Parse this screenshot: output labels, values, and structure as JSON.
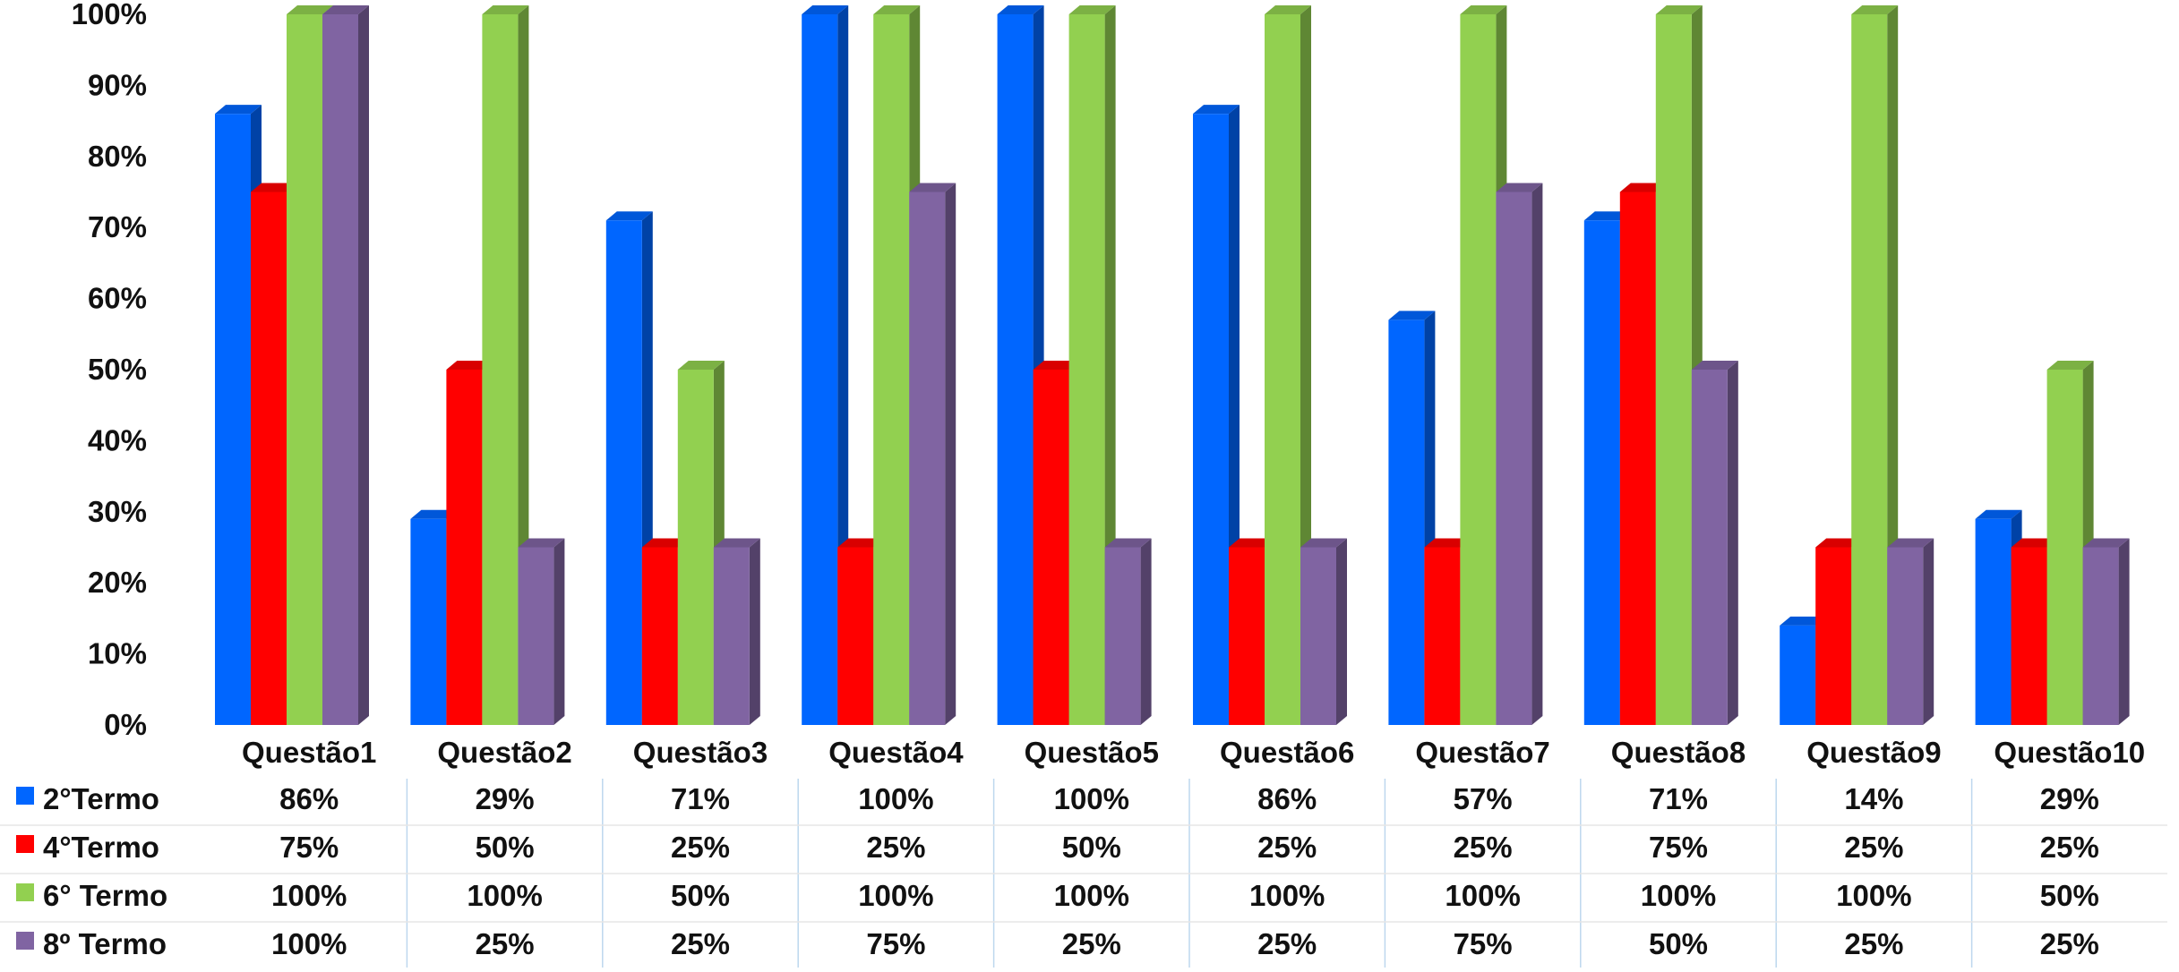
{
  "chart_data": {
    "type": "bar",
    "style": "3d-clustered-column-with-data-table",
    "categories": [
      "Questão1",
      "Questão2",
      "Questão3",
      "Questão4",
      "Questão5",
      "Questão6",
      "Questão7",
      "Questão8",
      "Questão9",
      "Questão10"
    ],
    "series": [
      {
        "name": "2°Termo",
        "color": "#0066FF",
        "values": [
          86,
          29,
          71,
          100,
          100,
          86,
          57,
          71,
          14,
          29
        ],
        "labels": [
          "86%",
          "29%",
          "71%",
          "100%",
          "100%",
          "86%",
          "57%",
          "71%",
          "14%",
          "29%"
        ]
      },
      {
        "name": "4°Termo",
        "color": "#FF0000",
        "values": [
          75,
          50,
          25,
          25,
          50,
          25,
          25,
          75,
          25,
          25
        ],
        "labels": [
          "75%",
          "50%",
          "25%",
          "25%",
          "50%",
          "25%",
          "25%",
          "75%",
          "25%",
          "25%"
        ]
      },
      {
        "name": "6° Termo",
        "color": "#92D050",
        "values": [
          100,
          100,
          50,
          100,
          100,
          100,
          100,
          100,
          100,
          50
        ],
        "labels": [
          "100%",
          "100%",
          "50%",
          "100%",
          "100%",
          "100%",
          "100%",
          "100%",
          "100%",
          "50%"
        ]
      },
      {
        "name": "8º Termo",
        "color": "#8064A2",
        "values": [
          100,
          25,
          25,
          75,
          25,
          25,
          75,
          50,
          25,
          25
        ],
        "labels": [
          "100%",
          "25%",
          "25%",
          "75%",
          "25%",
          "25%",
          "75%",
          "50%",
          "25%",
          "25%"
        ]
      }
    ],
    "yticks": [
      "0%",
      "10%",
      "20%",
      "30%",
      "40%",
      "50%",
      "60%",
      "70%",
      "80%",
      "90%",
      "100%"
    ],
    "ylim": [
      0,
      100
    ],
    "grid": false,
    "legend": "data-table-left"
  }
}
